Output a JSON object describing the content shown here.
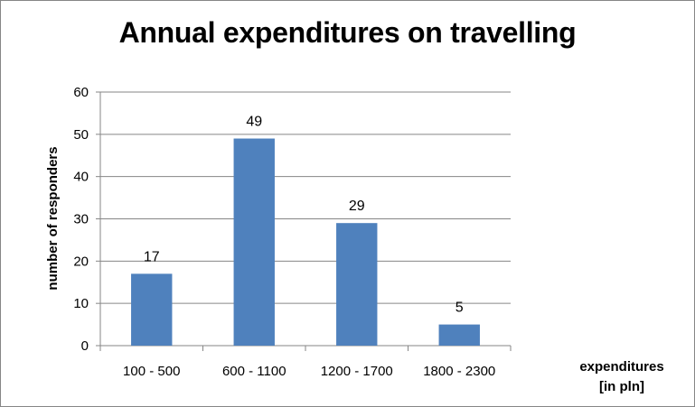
{
  "chart_data": {
    "type": "bar",
    "title": "Annual expenditures on travelling",
    "xlabel": [
      "expenditures",
      "[in pln]"
    ],
    "ylabel": "number of responders",
    "categories": [
      "100 - 500",
      "600 - 1100",
      "1200 - 1700",
      "1800 - 2300"
    ],
    "values": [
      17,
      49,
      29,
      5
    ],
    "data_labels": [
      "17",
      "49",
      "29",
      "5"
    ],
    "ylim": [
      0,
      60
    ],
    "yticks": [
      "0",
      "10",
      "20",
      "30",
      "40",
      "50",
      "60"
    ],
    "grid": true,
    "legend": "none",
    "bar_color": "#4f81bd",
    "gridline_color": "#868686"
  }
}
